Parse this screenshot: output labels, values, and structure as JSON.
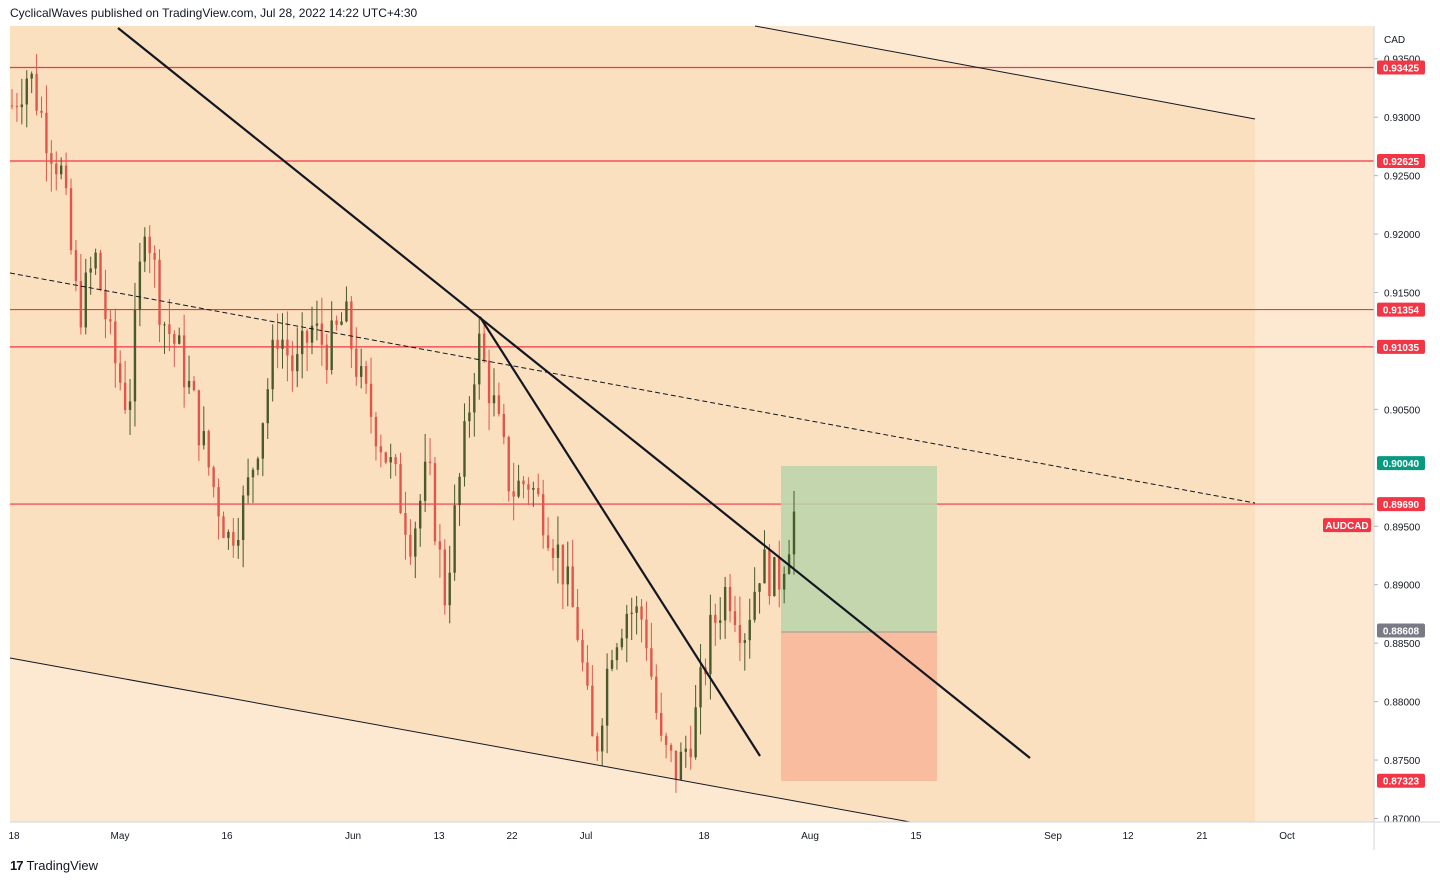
{
  "header": {
    "text": "CyclicalWaves published on TradingView.com, Jul 28, 2022 14:22 UTC+4:30"
  },
  "footer": {
    "logo": "17",
    "brand": "TradingView"
  },
  "colors": {
    "background_zone": "#fbe0c0",
    "channel_fill": "#fde8d2",
    "level_line": "#f23645",
    "candle_up": "#4a5a2a",
    "candle_down": "#e0564a",
    "target_box": "#b9d3a9",
    "stop_box": "#f9b89a",
    "tag_red": "#f23645",
    "tag_teal": "#089981",
    "tag_grey": "#787b86"
  },
  "chart_data": {
    "type": "candlestick",
    "symbol": "AUDCAD",
    "currency": "CAD",
    "y_ticks": [
      "0.93500",
      "0.93000",
      "0.92500",
      "0.92000",
      "0.91500",
      "0.90500",
      "0.89500",
      "0.89000",
      "0.88500",
      "0.88000",
      "0.87500",
      "0.87000"
    ],
    "x_ticks": [
      "18",
      "May",
      "16",
      "Jun",
      "13",
      "22",
      "Jul",
      "18",
      "Aug",
      "15",
      "Sep",
      "12",
      "21",
      "Oct"
    ],
    "ylim": [
      0.8697,
      0.9378
    ],
    "horizontal_levels": [
      0.93425,
      0.92625,
      0.91354,
      0.91035,
      0.8969
    ],
    "price_tags": [
      {
        "label": "0.93425",
        "value": 0.93425,
        "kind": "red"
      },
      {
        "label": "0.92625",
        "value": 0.92625,
        "kind": "red"
      },
      {
        "label": "0.91354",
        "value": 0.91354,
        "kind": "red"
      },
      {
        "label": "0.91035",
        "value": 0.91035,
        "kind": "red"
      },
      {
        "label": "0.90040",
        "value": 0.9004,
        "kind": "teal"
      },
      {
        "label": "0.89690",
        "value": 0.8969,
        "kind": "red"
      },
      {
        "label": "0.88608",
        "value": 0.88608,
        "kind": "grey"
      },
      {
        "label": "0.87323",
        "value": 0.87323,
        "kind": "red"
      }
    ],
    "symbol_tag": {
      "label": "AUDCAD",
      "value": 0.8951
    },
    "position": {
      "entry": 0.88608,
      "target": 0.9004,
      "stop": 0.87323
    },
    "price_path": [
      0.931,
      0.934,
      0.929,
      0.925,
      0.913,
      0.918,
      0.91,
      0.905,
      0.922,
      0.913,
      0.91,
      0.905,
      0.899,
      0.894,
      0.897,
      0.904,
      0.912,
      0.908,
      0.912,
      0.91,
      0.913,
      0.907,
      0.903,
      0.899,
      0.894,
      0.9,
      0.889,
      0.9,
      0.911,
      0.905,
      0.898,
      0.899,
      0.896,
      0.892,
      0.886,
      0.875,
      0.885,
      0.888,
      0.887,
      0.876,
      0.874,
      0.878,
      0.886,
      0.89,
      0.886,
      0.892,
      0.89,
      0.896
    ]
  }
}
